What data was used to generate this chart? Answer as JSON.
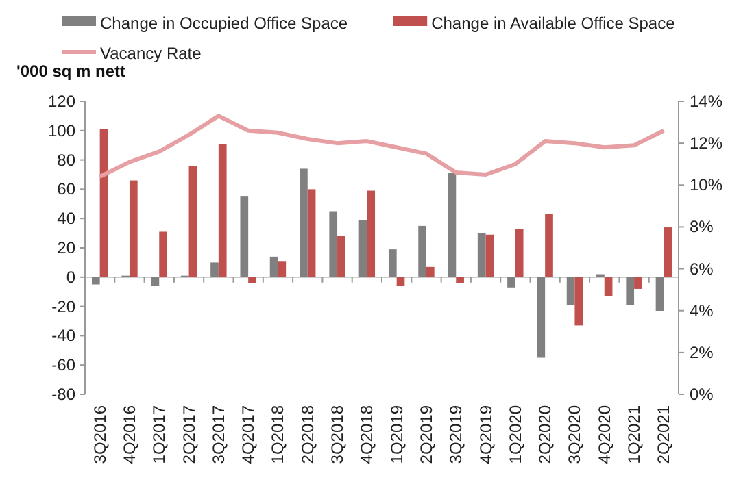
{
  "chart_data": {
    "type": "bar",
    "ylabel": "'000 sq m nett",
    "categories": [
      "3Q2016",
      "4Q2016",
      "1Q2017",
      "2Q2017",
      "3Q2017",
      "4Q2017",
      "1Q2018",
      "2Q2018",
      "3Q2018",
      "4Q2018",
      "1Q2019",
      "2Q2019",
      "3Q2019",
      "4Q2019",
      "1Q2020",
      "2Q2020",
      "3Q2020",
      "4Q2020",
      "1Q2021",
      "2Q2021"
    ],
    "series": [
      {
        "name": "Change in Occupied Office Space",
        "color": "#808080",
        "values": [
          -5,
          1,
          -6,
          1,
          10,
          55,
          14,
          74,
          45,
          39,
          19,
          35,
          71,
          30,
          -7,
          -55,
          -19,
          2,
          -19,
          -23
        ]
      },
      {
        "name": "Change in Available Office Space",
        "color": "#c0504d",
        "values": [
          101,
          66,
          31,
          76,
          91,
          -4,
          11,
          60,
          28,
          59,
          -6,
          7,
          -4,
          29,
          33,
          43,
          -33,
          -13,
          -8,
          34
        ]
      },
      {
        "name": "Vacancy Rate",
        "type": "line",
        "axis": "y2",
        "color": "#e6a0a4",
        "values": [
          10.4,
          11.1,
          11.6,
          12.4,
          13.3,
          12.6,
          12.5,
          12.2,
          12.0,
          12.1,
          11.8,
          11.5,
          10.6,
          10.5,
          11.0,
          12.1,
          12.0,
          11.8,
          11.9,
          12.6
        ]
      }
    ],
    "ylim": [
      -80,
      120
    ],
    "yticks": [
      -80,
      -60,
      -40,
      -20,
      0,
      20,
      40,
      60,
      80,
      100,
      120
    ],
    "y2lim": [
      0,
      14
    ],
    "y2ticks": [
      {
        "value": 0,
        "label": "0%"
      },
      {
        "value": 2,
        "label": "2%"
      },
      {
        "value": 4,
        "label": "4%"
      },
      {
        "value": 6,
        "label": "6%"
      },
      {
        "value": 8,
        "label": "8%"
      },
      {
        "value": 10,
        "label": "10%"
      },
      {
        "value": 12,
        "label": "12%"
      },
      {
        "value": 14,
        "label": "14%"
      }
    ],
    "legend": "top",
    "marker": "none",
    "line_style": "solid"
  }
}
